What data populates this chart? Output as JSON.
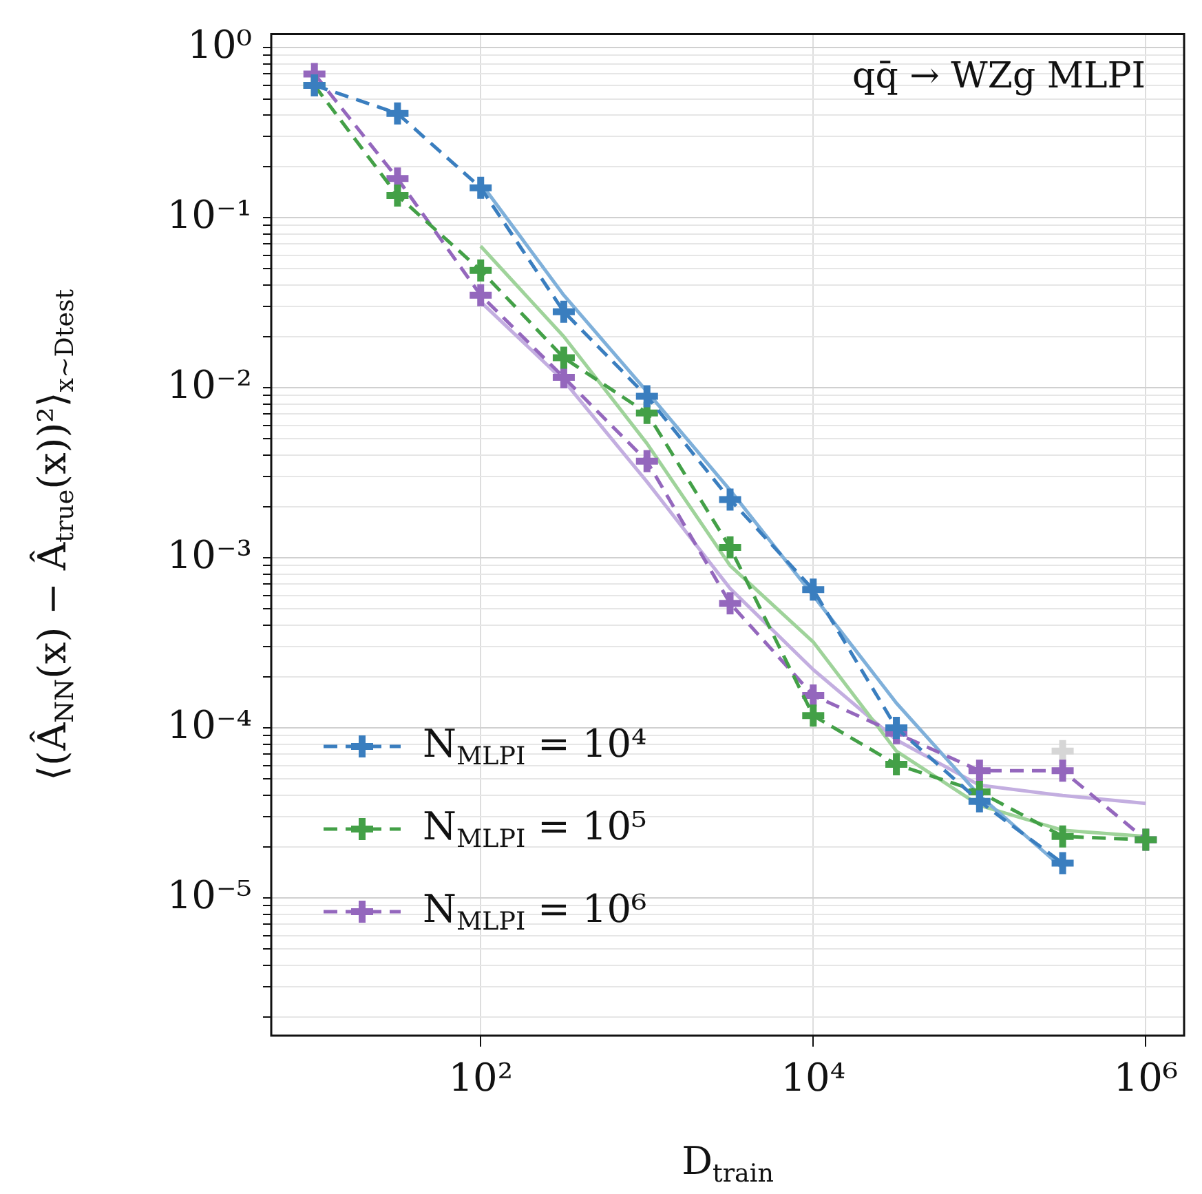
{
  "chart_data": {
    "type": "line",
    "xlabel": "D$_{train}$",
    "ylabel": "⟨(Â$_{NN}$(x) − Â$_{true}$(x))²⟩$_{x∼Dtest}$",
    "annotations": [
      "qq̄ → WZg MLPI"
    ],
    "log": "xy",
    "grid": true,
    "legend": "bottom left",
    "marker": "cross",
    "line_style": "dashed",
    "xlim": [
      5.5,
      1700000.0
    ],
    "xticks": [
      {
        "value": 100,
        "label": "10²"
      },
      {
        "value": 10000,
        "label": "10⁴"
      },
      {
        "value": 1000000,
        "label": "10⁶"
      }
    ],
    "ylim": [
      1.55e-06,
      1.2
    ],
    "yticks": [
      {
        "value": 2e-06,
        "label": null
      },
      {
        "value": 3e-06,
        "label": null
      },
      {
        "value": 4e-06,
        "label": null
      },
      {
        "value": 5e-06,
        "label": null
      },
      {
        "value": 6e-06,
        "label": null
      },
      {
        "value": 7e-06,
        "label": null
      },
      {
        "value": 8e-06,
        "label": null
      },
      {
        "value": 9e-06,
        "label": null
      },
      {
        "value": 1e-05,
        "label": "10⁻⁵"
      },
      {
        "value": 2e-05,
        "label": null
      },
      {
        "value": 3e-05,
        "label": null
      },
      {
        "value": 4e-05,
        "label": null
      },
      {
        "value": 5e-05,
        "label": null
      },
      {
        "value": 6e-05,
        "label": null
      },
      {
        "value": 7e-05,
        "label": null
      },
      {
        "value": 8e-05,
        "label": null
      },
      {
        "value": 9e-05,
        "label": null
      },
      {
        "value": 0.0001,
        "label": "10⁻⁴"
      },
      {
        "value": 0.0002,
        "label": null
      },
      {
        "value": 0.0003,
        "label": null
      },
      {
        "value": 0.0004,
        "label": null
      },
      {
        "value": 0.0005,
        "label": null
      },
      {
        "value": 0.0006,
        "label": null
      },
      {
        "value": 0.0007,
        "label": null
      },
      {
        "value": 0.0008,
        "label": null
      },
      {
        "value": 0.0009,
        "label": null
      },
      {
        "value": 0.001,
        "label": "10⁻³"
      },
      {
        "value": 0.002,
        "label": null
      },
      {
        "value": 0.003,
        "label": null
      },
      {
        "value": 0.004,
        "label": null
      },
      {
        "value": 0.005,
        "label": null
      },
      {
        "value": 0.006,
        "label": null
      },
      {
        "value": 0.007,
        "label": null
      },
      {
        "value": 0.008,
        "label": null
      },
      {
        "value": 0.009,
        "label": null
      },
      {
        "value": 0.01,
        "label": "10⁻²"
      },
      {
        "value": 0.02,
        "label": null
      },
      {
        "value": 0.03,
        "label": null
      },
      {
        "value": 0.04,
        "label": null
      },
      {
        "value": 0.05,
        "label": null
      },
      {
        "value": 0.06,
        "label": null
      },
      {
        "value": 0.07,
        "label": null
      },
      {
        "value": 0.08,
        "label": null
      },
      {
        "value": 0.09,
        "label": null
      },
      {
        "value": 0.1,
        "label": "10⁻¹"
      },
      {
        "value": 0.2,
        "label": null
      },
      {
        "value": 0.3,
        "label": null
      },
      {
        "value": 0.4,
        "label": null
      },
      {
        "value": 0.5,
        "label": null
      },
      {
        "value": 0.6,
        "label": null
      },
      {
        "value": 0.7,
        "label": null
      },
      {
        "value": 0.8,
        "label": null
      },
      {
        "value": 0.9,
        "label": null
      },
      {
        "value": 1,
        "label": "10⁰"
      }
    ],
    "series": [
      {
        "type": "line",
        "color": "#7fb0da",
        "marker": "none",
        "line_style": "solid",
        "x": [
          100,
          316,
          1000,
          3162,
          10000,
          31623,
          100000,
          316228
        ],
        "values": [
          0.16,
          0.035,
          0.0095,
          0.0025,
          0.0006,
          0.00014,
          4e-05,
          1.5e-05
        ]
      },
      {
        "type": "line",
        "color": "#9fd39a",
        "marker": "none",
        "line_style": "solid",
        "x": [
          100,
          316,
          1000,
          3162,
          10000,
          31623,
          100000,
          316228,
          1000000
        ],
        "values": [
          0.068,
          0.02,
          0.0047,
          0.0009,
          0.00032,
          7.3e-05,
          3.5e-05,
          2.5e-05,
          2.3e-05
        ]
      },
      {
        "type": "line",
        "color": "#c3aee0",
        "marker": "none",
        "line_style": "solid",
        "x": [
          100,
          316,
          1000,
          3162,
          10000,
          31623,
          100000,
          316228,
          1000000
        ],
        "values": [
          0.032,
          0.011,
          0.0028,
          0.00066,
          0.00022,
          8.5e-05,
          4.6e-05,
          4e-05,
          3.6e-05
        ]
      },
      {
        "type": "scatter",
        "color": "#d6d6d6",
        "x": [
          316228
        ],
        "values": [
          7.3e-05
        ]
      },
      {
        "name": "N$_{MLPI}$ = 10⁴",
        "color": "#3a7ebf",
        "x": [
          10,
          31.6,
          100,
          316,
          1000,
          3162,
          10000,
          31623,
          100000,
          316228
        ],
        "values": [
          0.6,
          0.41,
          0.15,
          0.028,
          0.0089,
          0.0022,
          0.00065,
          0.0001,
          3.7e-05,
          1.6e-05
        ]
      },
      {
        "name": "N$_{MLPI}$ = 10⁵",
        "color": "#43a047",
        "x": [
          10,
          31.6,
          100,
          316,
          1000,
          3162,
          10000,
          31623,
          100000,
          316228,
          1000000
        ],
        "values": [
          0.6,
          0.135,
          0.049,
          0.015,
          0.0071,
          0.00115,
          0.000118,
          6.1e-05,
          4.2e-05,
          2.3e-05,
          2.2e-05
        ]
      },
      {
        "name": "N$_{MLPI}$ = 10⁶",
        "color": "#9467bd",
        "x": [
          10,
          31.6,
          100,
          316,
          1000,
          3162,
          10000,
          31623,
          100000,
          316228,
          1000000
        ],
        "values": [
          0.7,
          0.17,
          0.035,
          0.0115,
          0.0037,
          0.00054,
          0.000155,
          9.3e-05,
          5.6e-05,
          5.6e-05,
          2.2e-05
        ]
      }
    ]
  }
}
